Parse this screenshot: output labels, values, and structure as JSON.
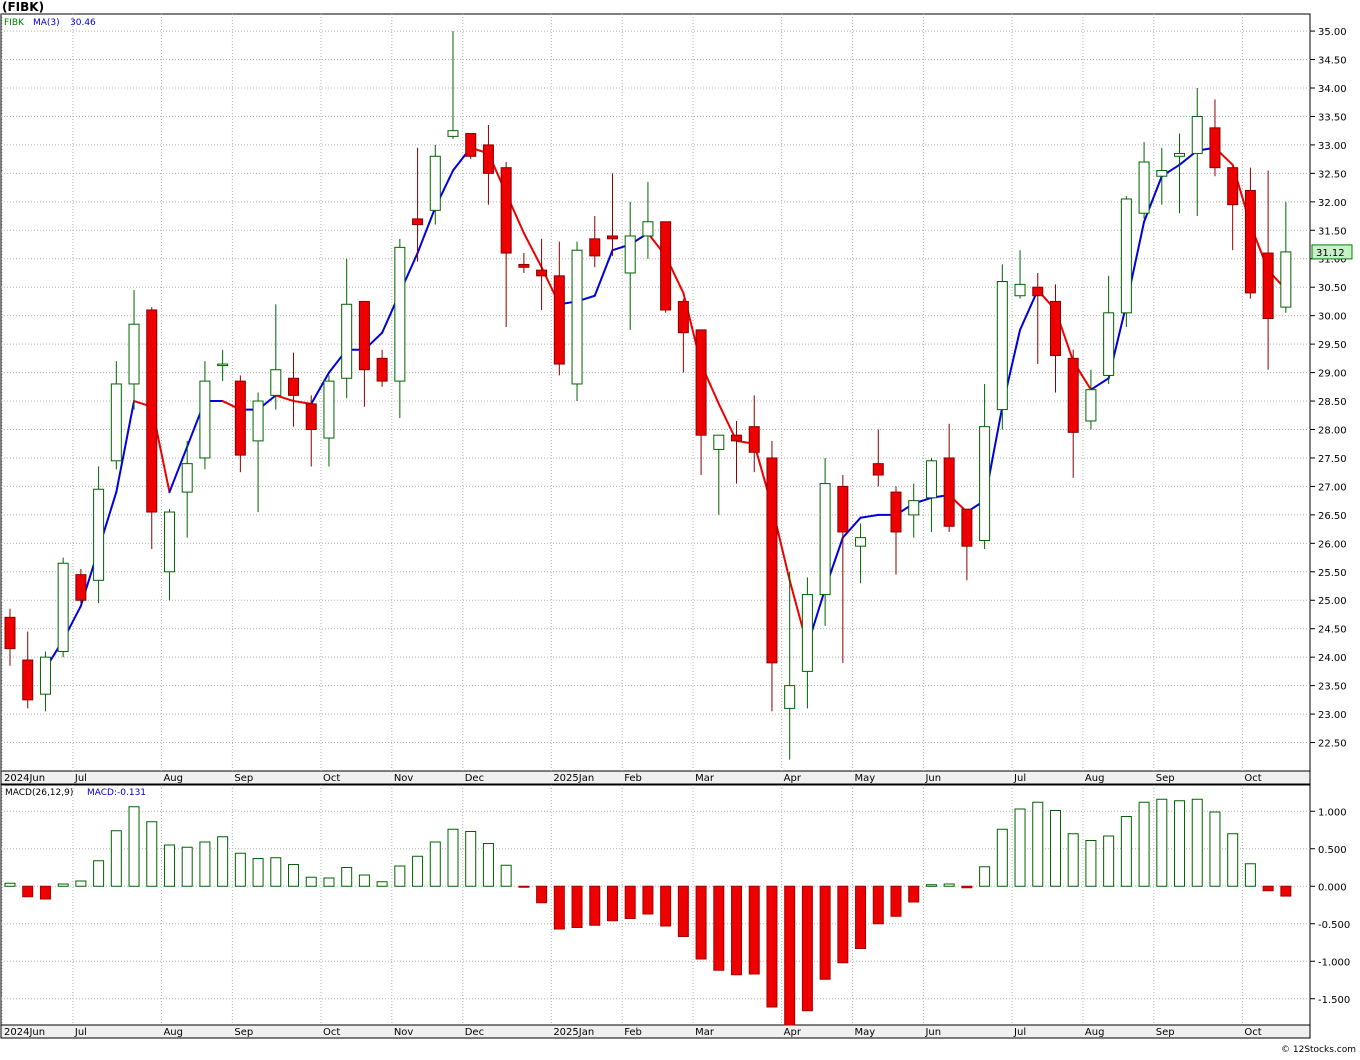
{
  "chart_data": [
    {
      "type": "candlestick",
      "title": "(FIBK)",
      "symbol": "FIBK",
      "overlay_label": "MA(3)",
      "overlay_value": "30.46",
      "last_price_badge": "31.12",
      "y_ticks": [
        "22.50",
        "23.00",
        "23.50",
        "24.00",
        "24.50",
        "25.00",
        "25.50",
        "26.00",
        "26.50",
        "27.00",
        "27.50",
        "28.00",
        "28.50",
        "29.00",
        "29.50",
        "30.00",
        "30.50",
        "31.00",
        "31.50",
        "32.00",
        "32.50",
        "33.00",
        "33.50",
        "34.00",
        "34.50",
        "35.00"
      ],
      "ylim": [
        22.0,
        35.3
      ],
      "x_labels": [
        {
          "label": "2024Jun",
          "i": 0
        },
        {
          "label": "Jul",
          "i": 4
        },
        {
          "label": "Aug",
          "i": 9
        },
        {
          "label": "Sep",
          "i": 13
        },
        {
          "label": "Oct",
          "i": 18
        },
        {
          "label": "Nov",
          "i": 22
        },
        {
          "label": "Dec",
          "i": 26
        },
        {
          "label": "2025Jan",
          "i": 31
        },
        {
          "label": "Feb",
          "i": 35
        },
        {
          "label": "Mar",
          "i": 39
        },
        {
          "label": "Apr",
          "i": 44
        },
        {
          "label": "May",
          "i": 48
        },
        {
          "label": "Jun",
          "i": 52
        },
        {
          "label": "Jul",
          "i": 57
        },
        {
          "label": "Aug",
          "i": 61
        },
        {
          "label": "Sep",
          "i": 65
        },
        {
          "label": "Oct",
          "i": 70
        }
      ],
      "candles": [
        {
          "o": 24.7,
          "h": 24.85,
          "l": 23.85,
          "c": 24.15
        },
        {
          "o": 23.95,
          "h": 24.45,
          "l": 23.1,
          "c": 23.25
        },
        {
          "o": 23.35,
          "h": 24.1,
          "l": 23.05,
          "c": 24.0
        },
        {
          "o": 24.1,
          "h": 25.75,
          "l": 24.0,
          "c": 25.65
        },
        {
          "o": 25.45,
          "h": 25.55,
          "l": 24.95,
          "c": 25.0
        },
        {
          "o": 25.35,
          "h": 27.35,
          "l": 24.95,
          "c": 26.95
        },
        {
          "o": 27.45,
          "h": 29.2,
          "l": 27.3,
          "c": 28.8
        },
        {
          "o": 28.8,
          "h": 30.45,
          "l": 28.35,
          "c": 29.85
        },
        {
          "o": 30.1,
          "h": 30.15,
          "l": 25.9,
          "c": 26.55
        },
        {
          "o": 25.5,
          "h": 26.6,
          "l": 25.0,
          "c": 26.55
        },
        {
          "o": 26.9,
          "h": 27.8,
          "l": 26.1,
          "c": 27.4
        },
        {
          "o": 27.5,
          "h": 29.2,
          "l": 27.3,
          "c": 28.85
        },
        {
          "o": 29.15,
          "h": 29.4,
          "l": 28.85,
          "c": 29.15
        },
        {
          "o": 28.85,
          "h": 28.95,
          "l": 27.25,
          "c": 27.55
        },
        {
          "o": 27.8,
          "h": 28.65,
          "l": 26.55,
          "c": 28.5
        },
        {
          "o": 28.6,
          "h": 30.2,
          "l": 28.35,
          "c": 29.05
        },
        {
          "o": 28.9,
          "h": 29.35,
          "l": 28.05,
          "c": 28.6
        },
        {
          "o": 28.45,
          "h": 28.6,
          "l": 27.35,
          "c": 28.0
        },
        {
          "o": 27.85,
          "h": 28.95,
          "l": 27.35,
          "c": 28.85
        },
        {
          "o": 28.9,
          "h": 31.0,
          "l": 28.55,
          "c": 30.2
        },
        {
          "o": 30.25,
          "h": 30.25,
          "l": 28.4,
          "c": 29.05
        },
        {
          "o": 29.25,
          "h": 29.4,
          "l": 28.75,
          "c": 28.85
        },
        {
          "o": 28.85,
          "h": 31.35,
          "l": 28.2,
          "c": 31.2
        },
        {
          "o": 31.7,
          "h": 32.95,
          "l": 30.95,
          "c": 31.6
        },
        {
          "o": 31.85,
          "h": 33.0,
          "l": 31.6,
          "c": 32.8
        },
        {
          "o": 33.15,
          "h": 35.0,
          "l": 33.1,
          "c": 33.25
        },
        {
          "o": 33.2,
          "h": 33.2,
          "l": 32.75,
          "c": 32.8
        },
        {
          "o": 33.0,
          "h": 33.35,
          "l": 31.95,
          "c": 32.5
        },
        {
          "o": 32.6,
          "h": 32.7,
          "l": 29.8,
          "c": 31.1
        },
        {
          "o": 30.9,
          "h": 31.1,
          "l": 30.75,
          "c": 30.85
        },
        {
          "o": 30.8,
          "h": 31.35,
          "l": 30.1,
          "c": 30.7
        },
        {
          "o": 30.7,
          "h": 31.3,
          "l": 28.95,
          "c": 29.15
        },
        {
          "o": 28.8,
          "h": 31.3,
          "l": 28.5,
          "c": 31.15
        },
        {
          "o": 31.35,
          "h": 31.75,
          "l": 30.85,
          "c": 31.05
        },
        {
          "o": 31.4,
          "h": 32.5,
          "l": 31.05,
          "c": 31.35
        },
        {
          "o": 30.75,
          "h": 32.0,
          "l": 29.75,
          "c": 31.4
        },
        {
          "o": 31.4,
          "h": 32.35,
          "l": 31.0,
          "c": 31.65
        },
        {
          "o": 31.65,
          "h": 31.65,
          "l": 30.05,
          "c": 30.1
        },
        {
          "o": 30.25,
          "h": 30.3,
          "l": 29.0,
          "c": 29.7
        },
        {
          "o": 29.75,
          "h": 29.75,
          "l": 27.2,
          "c": 27.9
        },
        {
          "o": 27.65,
          "h": 27.9,
          "l": 26.5,
          "c": 27.9
        },
        {
          "o": 27.9,
          "h": 28.15,
          "l": 27.05,
          "c": 27.8
        },
        {
          "o": 28.05,
          "h": 28.6,
          "l": 27.25,
          "c": 27.6
        },
        {
          "o": 27.5,
          "h": 27.8,
          "l": 23.05,
          "c": 23.9
        },
        {
          "o": 23.1,
          "h": 25.5,
          "l": 22.2,
          "c": 23.5
        },
        {
          "o": 23.75,
          "h": 25.4,
          "l": 23.1,
          "c": 25.1
        },
        {
          "o": 25.1,
          "h": 27.5,
          "l": 24.55,
          "c": 27.05
        },
        {
          "o": 27.0,
          "h": 27.2,
          "l": 23.9,
          "c": 26.2
        },
        {
          "o": 25.95,
          "h": 26.35,
          "l": 25.3,
          "c": 26.1
        },
        {
          "o": 27.4,
          "h": 28.0,
          "l": 27.0,
          "c": 27.2
        },
        {
          "o": 26.9,
          "h": 27.0,
          "l": 25.45,
          "c": 26.2
        },
        {
          "o": 26.5,
          "h": 27.05,
          "l": 26.1,
          "c": 26.75
        },
        {
          "o": 26.8,
          "h": 27.5,
          "l": 26.2,
          "c": 27.45
        },
        {
          "o": 27.5,
          "h": 28.1,
          "l": 26.2,
          "c": 26.3
        },
        {
          "o": 26.6,
          "h": 26.6,
          "l": 25.35,
          "c": 25.95
        },
        {
          "o": 26.05,
          "h": 28.8,
          "l": 25.9,
          "c": 28.05
        },
        {
          "o": 28.35,
          "h": 30.9,
          "l": 28.0,
          "c": 30.6
        },
        {
          "o": 30.35,
          "h": 31.15,
          "l": 30.3,
          "c": 30.55
        },
        {
          "o": 30.5,
          "h": 30.75,
          "l": 29.15,
          "c": 30.35
        },
        {
          "o": 30.25,
          "h": 30.55,
          "l": 28.65,
          "c": 29.3
        },
        {
          "o": 29.25,
          "h": 29.4,
          "l": 27.15,
          "c": 27.95
        },
        {
          "o": 28.15,
          "h": 29.05,
          "l": 28.0,
          "c": 28.7
        },
        {
          "o": 28.95,
          "h": 30.7,
          "l": 28.8,
          "c": 30.05
        },
        {
          "o": 30.05,
          "h": 32.1,
          "l": 29.8,
          "c": 32.05
        },
        {
          "o": 31.8,
          "h": 33.05,
          "l": 31.7,
          "c": 32.7
        },
        {
          "o": 32.45,
          "h": 32.95,
          "l": 31.95,
          "c": 32.55
        },
        {
          "o": 32.8,
          "h": 33.2,
          "l": 31.8,
          "c": 32.85
        },
        {
          "o": 32.85,
          "h": 34.0,
          "l": 31.75,
          "c": 33.5
        },
        {
          "o": 33.3,
          "h": 33.8,
          "l": 32.45,
          "c": 32.6
        },
        {
          "o": 32.6,
          "h": 32.6,
          "l": 31.15,
          "c": 31.95
        },
        {
          "o": 32.2,
          "h": 32.6,
          "l": 30.3,
          "c": 30.4
        },
        {
          "o": 31.1,
          "h": 32.55,
          "l": 29.05,
          "c": 29.95
        },
        {
          "o": 30.15,
          "h": 32.0,
          "l": 30.05,
          "c": 31.12
        }
      ],
      "ma": [
        null,
        null,
        23.8,
        24.3,
        24.9,
        25.9,
        26.9,
        28.5,
        28.4,
        26.9,
        27.7,
        28.5,
        28.5,
        28.35,
        28.35,
        28.6,
        28.5,
        28.45,
        29.0,
        29.4,
        29.4,
        29.7,
        30.4,
        31.1,
        31.9,
        32.55,
        32.95,
        32.85,
        32.15,
        31.45,
        30.85,
        30.2,
        30.25,
        30.35,
        31.15,
        31.25,
        31.45,
        31.05,
        30.4,
        29.15,
        28.45,
        27.8,
        27.75,
        26.65,
        25.35,
        24.2,
        25.2,
        26.1,
        26.45,
        26.5,
        26.5,
        26.7,
        26.8,
        26.85,
        26.55,
        26.75,
        28.4,
        29.75,
        30.45,
        30.1,
        29.2,
        28.7,
        28.9,
        30.2,
        31.65,
        32.45,
        32.65,
        32.9,
        32.95,
        32.65,
        31.6,
        30.8,
        30.46
      ]
    },
    {
      "type": "bar",
      "title": "MACD(26,12,9)",
      "value_label": "MACD:-0.131",
      "y_ticks": [
        "1.000",
        "0.500",
        "0.000",
        "-0.500",
        "-1.000",
        "-1.500"
      ],
      "ylim": [
        -1.85,
        1.35
      ],
      "values": [
        0.04,
        -0.14,
        -0.17,
        0.03,
        0.07,
        0.34,
        0.74,
        1.06,
        0.86,
        0.55,
        0.52,
        0.59,
        0.66,
        0.44,
        0.37,
        0.38,
        0.29,
        0.12,
        0.11,
        0.25,
        0.15,
        0.06,
        0.27,
        0.4,
        0.59,
        0.76,
        0.73,
        0.57,
        0.28,
        -0.01,
        -0.22,
        -0.57,
        -0.55,
        -0.52,
        -0.46,
        -0.43,
        -0.37,
        -0.53,
        -0.67,
        -0.97,
        -1.12,
        -1.18,
        -1.17,
        -1.61,
        -1.85,
        -1.66,
        -1.24,
        -1.02,
        -0.83,
        -0.5,
        -0.4,
        -0.21,
        0.02,
        0.03,
        -0.02,
        0.26,
        0.76,
        1.03,
        1.12,
        1.01,
        0.7,
        0.61,
        0.67,
        0.93,
        1.12,
        1.16,
        1.14,
        1.16,
        0.99,
        0.7,
        0.3,
        -0.06,
        -0.131
      ]
    }
  ],
  "footer": {
    "copyright": "© 12Stocks.com"
  }
}
